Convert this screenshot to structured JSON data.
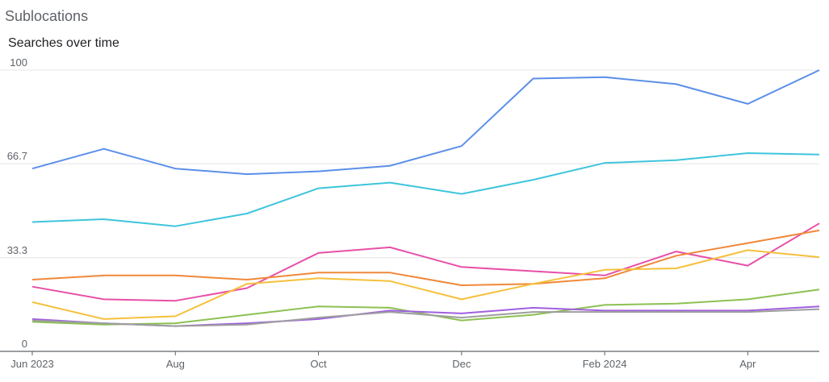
{
  "header": {
    "section_title": "Sublocations"
  },
  "chart_data": {
    "type": "line",
    "title": "Searches over time",
    "xlabel": "",
    "ylabel": "",
    "ylim": [
      0,
      100
    ],
    "y_ticks": [
      {
        "value": 0,
        "label": "0"
      },
      {
        "value": 33.3,
        "label": "33.3"
      },
      {
        "value": 66.7,
        "label": "66.7"
      },
      {
        "value": 100,
        "label": "100"
      }
    ],
    "x": [
      "2023-06",
      "2023-07",
      "2023-08",
      "2023-09",
      "2023-10",
      "2023-11",
      "2023-12",
      "2024-01",
      "2024-02",
      "2024-03",
      "2024-04",
      "2024-05"
    ],
    "x_ticks": [
      {
        "index": 0,
        "label": "Jun 2023"
      },
      {
        "index": 2,
        "label": "Aug"
      },
      {
        "index": 4,
        "label": "Oct"
      },
      {
        "index": 6,
        "label": "Dec"
      },
      {
        "index": 8,
        "label": "Feb 2024"
      },
      {
        "index": 10,
        "label": "Apr"
      }
    ],
    "grid": true,
    "series": [
      {
        "color": "#5b8fe8",
        "values": [
          65,
          72,
          65,
          63,
          64,
          66,
          73,
          97,
          97.5,
          95,
          88,
          100
        ]
      },
      {
        "color": "#3ec5dc",
        "values": [
          46,
          47,
          44.5,
          49,
          58,
          60,
          56,
          61,
          67,
          68,
          70.5,
          70
        ]
      },
      {
        "color": "#e84fa8",
        "values": [
          23,
          18.5,
          18,
          22.5,
          35,
          37,
          30,
          28.5,
          27,
          35.5,
          30.5,
          45.5
        ]
      },
      {
        "color": "#f0883a",
        "values": [
          25.5,
          27,
          27,
          25.5,
          28,
          28,
          23.5,
          24,
          26,
          34,
          38.5,
          43
        ]
      },
      {
        "color": "#f5c03b",
        "values": [
          17.5,
          11.5,
          12.5,
          24,
          26,
          25,
          18.5,
          24,
          29,
          29.5,
          36,
          33.5
        ]
      },
      {
        "color": "#8cc152",
        "values": [
          10.5,
          9.5,
          10,
          13,
          16,
          15.5,
          11,
          13,
          16.5,
          17,
          18.5,
          22
        ]
      },
      {
        "color": "#a05fe0",
        "values": [
          11.5,
          10,
          9,
          10,
          11.5,
          14.5,
          13.5,
          15.5,
          14.5,
          14.5,
          14.5,
          16
        ]
      },
      {
        "color": "#9e9e9e",
        "values": [
          11,
          10,
          9,
          9.5,
          12,
          14,
          12,
          14,
          14,
          14,
          14,
          15
        ]
      }
    ]
  }
}
